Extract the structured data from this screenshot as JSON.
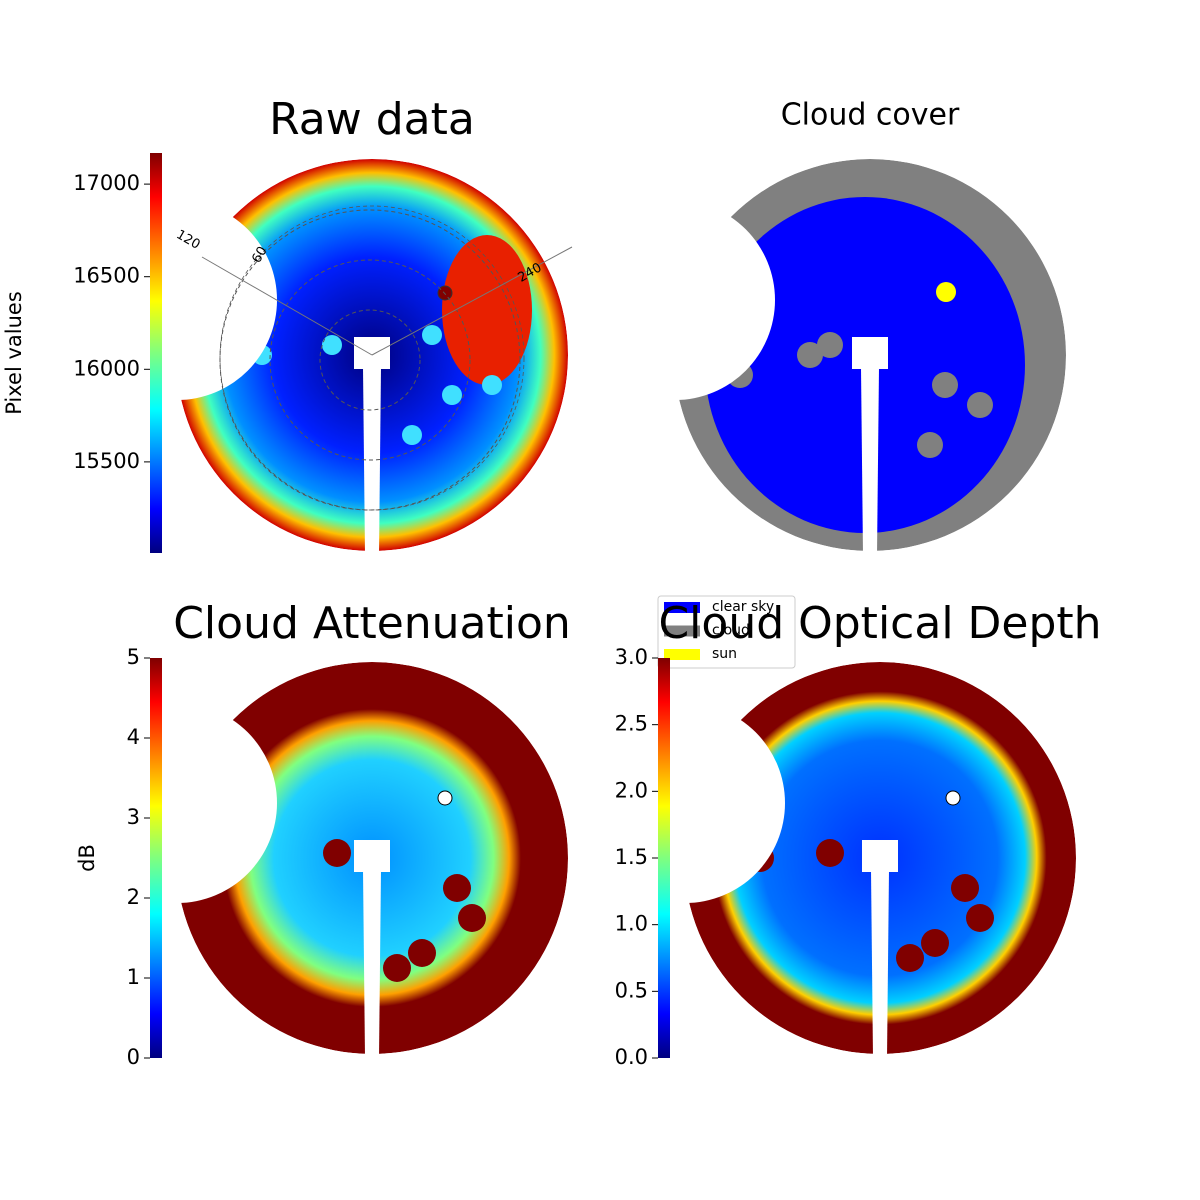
{
  "chart_data": [
    {
      "type": "image",
      "title": "Raw data",
      "colorbar": {
        "label": "Pixel values",
        "colormap": "jet",
        "ylim": [
          15008,
          17168
        ],
        "yticks": [
          15500,
          16000,
          16500,
          17000
        ]
      },
      "azimuth_labels": [
        "120",
        "60",
        "240"
      ]
    },
    {
      "type": "image",
      "title": "Cloud cover",
      "legend": [
        {
          "name": "clear sky",
          "color": "#0000ff"
        },
        {
          "name": "cloud",
          "color": "#808080"
        },
        {
          "name": "sun",
          "color": "#ffff00"
        }
      ]
    },
    {
      "type": "image",
      "title": "Cloud Attenuation",
      "colorbar": {
        "label": "dB",
        "colormap": "jet",
        "ylim": [
          0,
          5
        ],
        "yticks": [
          0,
          1,
          2,
          3,
          4,
          5
        ]
      }
    },
    {
      "type": "image",
      "title": "Cloud Optical Depth",
      "colorbar": {
        "colormap": "jet",
        "ylim": [
          0,
          3
        ],
        "yticks": [
          {
            "value": 0,
            "label": "0.0"
          },
          0.5,
          {
            "value": 1,
            "label": "1.0"
          },
          1.5,
          {
            "value": 2,
            "label": "2.0"
          },
          2.5,
          {
            "value": 3,
            "label": "3.0"
          }
        ]
      }
    }
  ]
}
